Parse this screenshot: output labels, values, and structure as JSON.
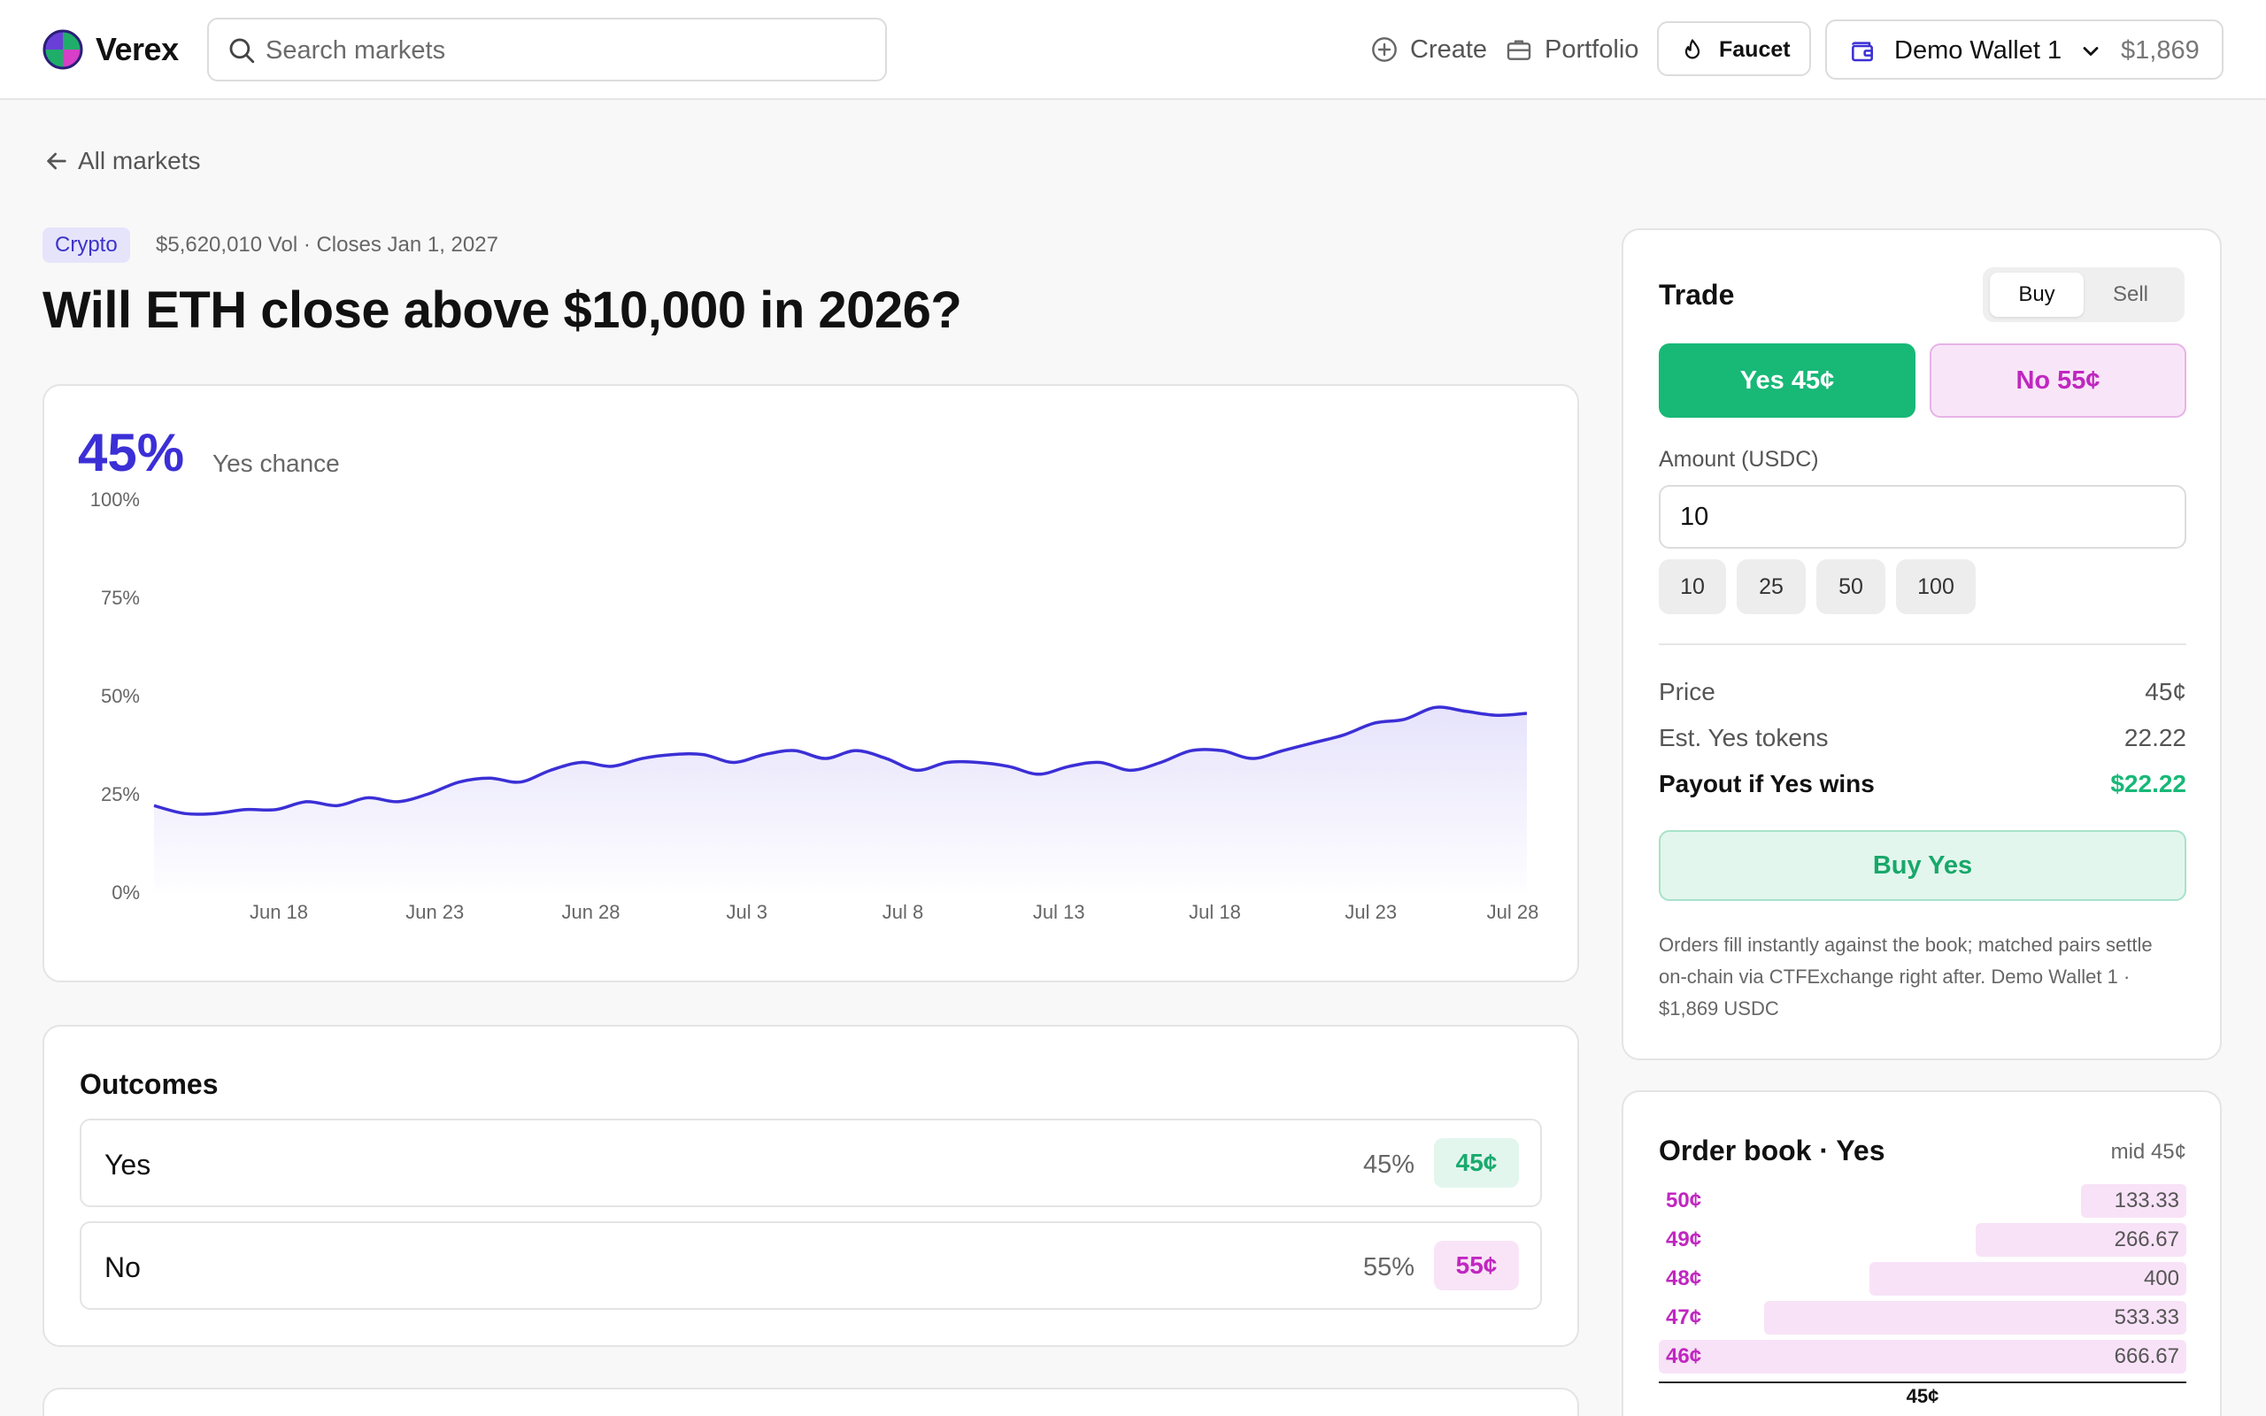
{
  "app": {
    "brand": "Verex"
  },
  "search": {
    "placeholder": "Search markets"
  },
  "nav": {
    "create": "Create",
    "portfolio": "Portfolio",
    "faucet": "Faucet"
  },
  "wallet": {
    "name": "Demo Wallet 1",
    "balance": "$1,869"
  },
  "back_link": "All markets",
  "market": {
    "category": "Crypto",
    "meta": "$5,620,010 Vol · Closes Jan 1, 2027",
    "title": "Will ETH close above $10,000 in 2026?",
    "chance": "45%",
    "chance_label": "Yes chance"
  },
  "chart_data": {
    "type": "area",
    "y_ticks": [
      "100%",
      "75%",
      "50%",
      "25%",
      "0%"
    ],
    "x_ticks": [
      "Jun 18",
      "Jun 23",
      "Jun 28",
      "Jul 3",
      "Jul 8",
      "Jul 13",
      "Jul 18",
      "Jul 23",
      "Jul 28"
    ],
    "ylim": [
      0,
      100
    ],
    "x_range": [
      "Jun 14",
      "Jul 28"
    ],
    "series": [
      {
        "values": [
          22,
          20,
          20,
          21,
          21,
          23,
          22,
          24,
          23,
          25,
          28,
          29,
          28,
          31,
          33,
          32,
          34,
          35,
          35,
          33,
          35,
          36,
          34,
          36,
          34,
          31,
          33,
          33,
          32,
          30,
          32,
          33,
          31,
          33,
          36,
          36,
          34,
          36,
          38,
          40,
          43,
          44,
          47,
          46,
          45,
          45.5
        ]
      }
    ],
    "line_color": "#3b2fd6",
    "fill_color": "#e6e3fb",
    "grid": false
  },
  "outcomes": {
    "heading": "Outcomes",
    "items": [
      {
        "name": "Yes",
        "pct": "45%",
        "price": "45¢",
        "kind": "yes"
      },
      {
        "name": "No",
        "pct": "55%",
        "price": "55¢",
        "kind": "no"
      }
    ]
  },
  "trade": {
    "heading": "Trade",
    "buy_tab": "Buy",
    "sell_tab": "Sell",
    "yes_button": "Yes 45¢",
    "no_button": "No 55¢",
    "amount_label": "Amount (USDC)",
    "amount_value": "10",
    "chips": [
      "10",
      "25",
      "50",
      "100"
    ],
    "price_label": "Price",
    "price_value": "45¢",
    "tokens_label": "Est. Yes tokens",
    "tokens_value": "22.22",
    "payout_label": "Payout if Yes wins",
    "payout_value": "$22.22",
    "submit": "Buy Yes",
    "note": "Orders fill instantly against the book; matched pairs settle on-chain via CTFExchange right after. Demo Wallet 1 · $1,869 USDC"
  },
  "order_book": {
    "heading": "Order book · Yes",
    "mid": "mid 45¢",
    "mid_label": "45¢",
    "asks": [
      {
        "price": "50¢",
        "size": "133.33",
        "depth": 0.2
      },
      {
        "price": "49¢",
        "size": "266.67",
        "depth": 0.4
      },
      {
        "price": "48¢",
        "size": "400",
        "depth": 0.6
      },
      {
        "price": "47¢",
        "size": "533.33",
        "depth": 0.8
      },
      {
        "price": "46¢",
        "size": "666.67",
        "depth": 1.0
      }
    ]
  },
  "colors": {
    "accent": "#3b2fd6",
    "yes": "#18b877",
    "no": "#c027c0"
  }
}
